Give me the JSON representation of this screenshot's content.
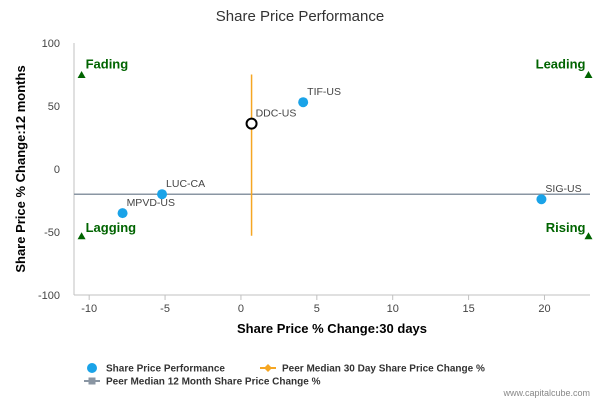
{
  "chart_data": {
    "type": "scatter",
    "title": "Share Price Performance",
    "xlabel": "Share Price % Change:30 days",
    "ylabel": "Share Price % Change:12 months",
    "xlim": [
      -11,
      23
    ],
    "ylim": [
      -100,
      100
    ],
    "x_ticks": [
      -10,
      -5,
      0,
      5,
      10,
      15,
      20
    ],
    "y_ticks": [
      100,
      50,
      0,
      -50,
      -100
    ],
    "grid": false,
    "legend_placement": "bottom",
    "points": [
      {
        "label": "TIF-US",
        "x": 4.1,
        "y": 53,
        "highlight": false
      },
      {
        "label": "DDC-US",
        "x": 0.7,
        "y": 36,
        "highlight": true
      },
      {
        "label": "LUC-CA",
        "x": -5.2,
        "y": -20,
        "highlight": false
      },
      {
        "label": "MPVD-US",
        "x": -7.8,
        "y": -35,
        "highlight": false
      },
      {
        "label": "SIG-US",
        "x": 19.8,
        "y": -24,
        "highlight": false
      }
    ],
    "peer_median_30d": 0.7,
    "peer_median_30d_range": [
      -53,
      75
    ],
    "peer_median_12m": -20,
    "quadrants": [
      {
        "label": "Fading",
        "x": -10.5,
        "y": 75,
        "corner": "top-left"
      },
      {
        "label": "Leading",
        "x": 22.9,
        "y": 75,
        "corner": "top-right"
      },
      {
        "label": "Lagging",
        "x": -10.5,
        "y": -53,
        "corner": "bottom-left"
      },
      {
        "label": "Rising",
        "x": 22.9,
        "y": -53,
        "corner": "bottom-right"
      }
    ],
    "legend": [
      {
        "label": "Share Price Performance",
        "kind": "dot"
      },
      {
        "label": "Peer Median 30 Day Share Price Change %",
        "kind": "line-diamond"
      },
      {
        "label": "Peer Median 12 Month Share Price Change %",
        "kind": "line-square"
      }
    ],
    "colors": {
      "points": "#1aa3e8",
      "peer_30d": "#f5a623",
      "peer_12m": "#8a96a3",
      "quadrant": "#006400",
      "axis": "#c0c0c0"
    }
  },
  "credit": "www.capitalcube.com"
}
